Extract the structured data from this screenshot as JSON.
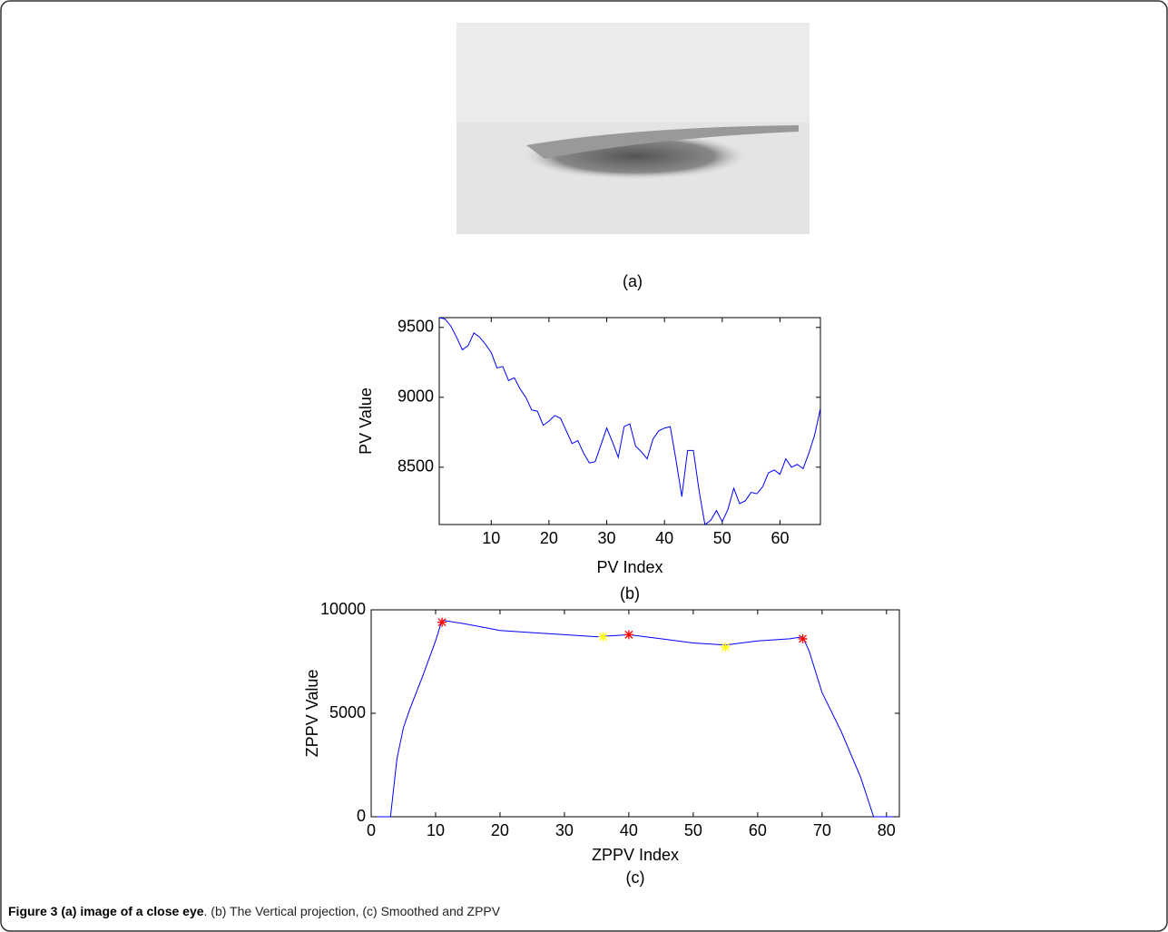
{
  "figure_label": "(a)",
  "caption": {
    "bold": "Figure 3 (a) image of a close eye",
    "text": ". (b) The Vertical projection, (c) Smoothed and ZPPV"
  },
  "chart_data": [
    {
      "type": "line",
      "label": "(b)",
      "x_label": "PV Index",
      "y_label": "PV Value",
      "xlim": [
        1,
        67
      ],
      "ylim": [
        8090,
        9570
      ],
      "xticks": [
        10,
        20,
        30,
        40,
        50,
        60
      ],
      "yticks": [
        8500,
        9000,
        9500
      ],
      "series": [
        {
          "color": "#0000ff",
          "x": [
            1,
            2,
            3,
            4,
            5,
            6,
            7,
            8,
            9,
            10,
            11,
            12,
            13,
            14,
            15,
            16,
            17,
            18,
            19,
            20,
            21,
            22,
            23,
            24,
            25,
            26,
            27,
            28,
            29,
            30,
            31,
            32,
            33,
            34,
            35,
            36,
            37,
            38,
            39,
            40,
            41,
            42,
            43,
            44,
            45,
            46,
            47,
            48,
            49,
            50,
            51,
            52,
            53,
            54,
            55,
            56,
            57,
            58,
            59,
            60,
            61,
            62,
            63,
            64,
            65,
            66,
            67
          ],
          "values": [
            9570,
            9560,
            9510,
            9430,
            9340,
            9370,
            9460,
            9430,
            9380,
            9320,
            9210,
            9220,
            9120,
            9140,
            9060,
            9000,
            8910,
            8900,
            8800,
            8830,
            8870,
            8850,
            8760,
            8670,
            8690,
            8600,
            8530,
            8540,
            8660,
            8780,
            8680,
            8570,
            8790,
            8810,
            8650,
            8610,
            8560,
            8700,
            8760,
            8780,
            8790,
            8550,
            8290,
            8620,
            8620,
            8330,
            8090,
            8120,
            8190,
            8110,
            8200,
            8350,
            8240,
            8260,
            8320,
            8310,
            8360,
            8460,
            8480,
            8450,
            8560,
            8500,
            8520,
            8490,
            8600,
            8730,
            8920
          ]
        }
      ]
    },
    {
      "type": "line",
      "label": "(c)",
      "x_label": "ZPPV Index",
      "y_label": "ZPPV Value",
      "xlim": [
        0,
        82
      ],
      "ylim": [
        0,
        10000
      ],
      "xticks": [
        0,
        10,
        20,
        30,
        40,
        50,
        60,
        70,
        80
      ],
      "yticks": [
        0,
        5000,
        10000
      ],
      "series": [
        {
          "color": "#0000ff",
          "x": [
            1,
            3,
            4,
            5,
            6,
            8,
            10,
            11,
            15,
            20,
            25,
            30,
            35,
            40,
            45,
            50,
            55,
            60,
            65,
            67,
            68,
            70,
            73,
            76,
            78,
            80,
            81
          ],
          "values": [
            0,
            0,
            2800,
            4300,
            5200,
            6800,
            8500,
            9500,
            9300,
            9000,
            8900,
            8800,
            8700,
            8800,
            8600,
            8400,
            8300,
            8500,
            8600,
            8700,
            8000,
            6000,
            4100,
            1900,
            0,
            0,
            0
          ]
        },
        {
          "color": "#ff0000",
          "marker": "star",
          "x": [
            11,
            40,
            67
          ],
          "values": [
            9400,
            8800,
            8600
          ]
        },
        {
          "color": "#ffff00",
          "marker": "star",
          "x": [
            36,
            55
          ],
          "values": [
            8700,
            8200
          ]
        }
      ]
    }
  ]
}
